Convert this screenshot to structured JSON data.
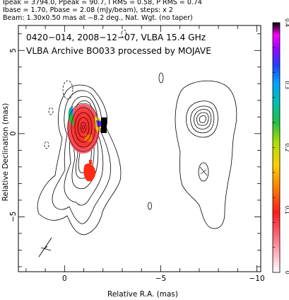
{
  "header": {
    "line1": "Ipeak = 3794.0, Ppeak = 90.7, I RMS = 0.58, P RMS = 0.74",
    "line2": "Ibase = 1.70, Pbase = 2.08 (mJy/beam), steps: x 2",
    "line3": "Beam: 1.30x0.50 mas at −8.2 deg., Nat. Wgt. (no taper)"
  },
  "plot_title": {
    "line1": "0420−014, 2008−12−07, VLBA 15.4 GHz",
    "line2": "VLBA Archive BO033 processed by MOJAVE"
  },
  "chart_data": {
    "type": "contour",
    "title": "0420−014, 2008−12−07, VLBA 15.4 GHz",
    "subtitle": "VLBA Archive BO033 processed by MOJAVE",
    "xlabel": "Relative R.A. (mas)",
    "ylabel": "Relative Declination (mas)",
    "xlim": [
      2.4,
      -10.2
    ],
    "ylim": [
      -8.3,
      6.5
    ],
    "x_ticks": [
      "0",
      "−5",
      "−10"
    ],
    "x_tick_values": [
      0,
      -5,
      -10
    ],
    "y_ticks": [
      "5",
      "0",
      "−5"
    ],
    "y_tick_values": [
      5,
      0,
      -5
    ],
    "colorbar": {
      "range": [
        0,
        0.4
      ],
      "ticks": [
        "0",
        "0.1",
        "0.2",
        "0.3",
        "0.4"
      ],
      "tick_values": [
        0,
        0.1,
        0.2,
        0.3,
        0.4
      ],
      "colors": [
        "#ffffff",
        "#ffb6c1",
        "#ff6a7a",
        "#ff2020",
        "#ff7a00",
        "#ffd000",
        "#c8e800",
        "#30d030",
        "#00c0a0",
        "#00b0ff",
        "#2040ff",
        "#a000ff",
        "#ff00ff",
        "#000000"
      ]
    },
    "panels": [
      {
        "name": "Stokes I",
        "center_x": 0.0
      },
      {
        "name": "Polarized",
        "center_x": -6.0
      }
    ],
    "stokes_i_contour_levels_mJy": [
      1.7,
      3.4,
      6.8,
      13.6,
      27.2,
      54.4,
      108.8,
      217.6,
      435.2,
      870.4,
      1740.8,
      3481.6
    ],
    "polarized_contour_levels_mJy": [
      2.08,
      4.16,
      8.32,
      16.64,
      33.28,
      66.56
    ],
    "beam": {
      "major_mas": 1.3,
      "minor_mas": 0.5,
      "pa_deg": -8.2,
      "center": [
        1.7,
        -6.2
      ]
    },
    "colors": {
      "axis": "#000000",
      "contour": "#000000",
      "background": "#ffffff"
    }
  }
}
